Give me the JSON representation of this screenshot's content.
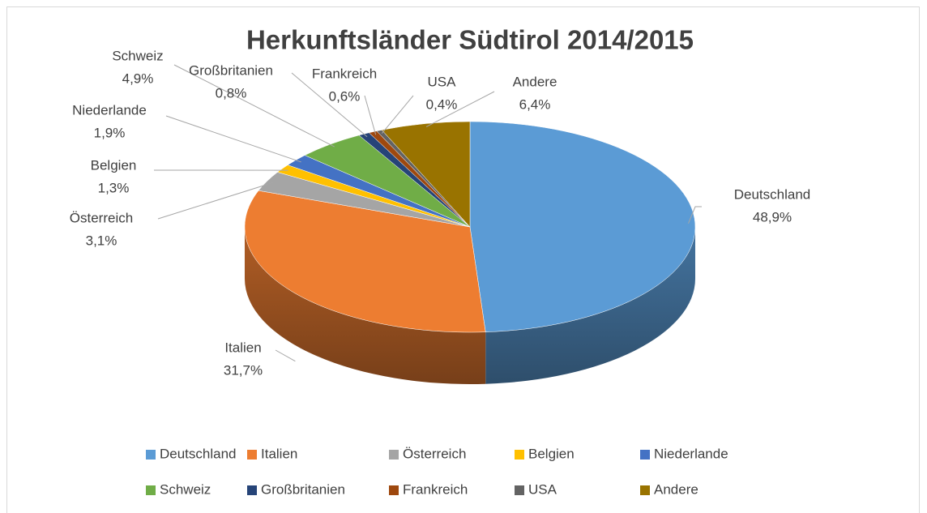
{
  "chart_data": {
    "type": "pie",
    "title": "Herkunftsländer Südtirol 2014/2015",
    "categories": [
      "Deutschland",
      "Italien",
      "Österreich",
      "Belgien",
      "Niederlande",
      "Schweiz",
      "Großbritanien",
      "Frankreich",
      "USA",
      "Andere"
    ],
    "values": [
      48.9,
      31.7,
      3.1,
      1.3,
      1.9,
      4.9,
      0.8,
      0.6,
      0.4,
      6.4
    ],
    "value_labels": [
      "48,9%",
      "31,7%",
      "3,1%",
      "1,3%",
      "1,9%",
      "4,9%",
      "0,8%",
      "0,6%",
      "0,4%",
      "6,4%"
    ],
    "colors": [
      "#5b9bd5",
      "#ed7d31",
      "#a5a5a5",
      "#ffc000",
      "#4472c4",
      "#70ad47",
      "#264478",
      "#9e480e",
      "#636363",
      "#997300"
    ],
    "legend": "bottom"
  }
}
